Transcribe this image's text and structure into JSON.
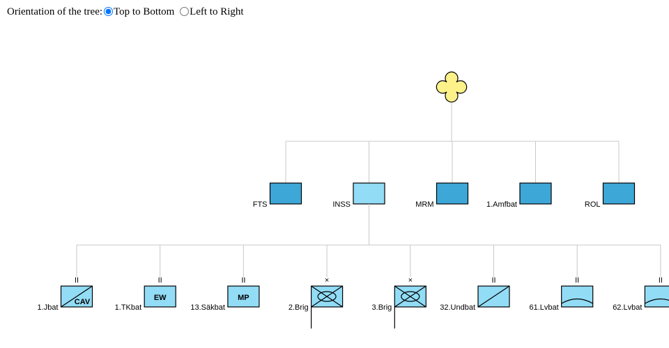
{
  "controls": {
    "label": "Orientation of the tree:",
    "options": [
      "Top to Bottom",
      "Left to Right"
    ]
  },
  "tree": {
    "level1": [
      {
        "label": "FTS",
        "color": "#3da8d8"
      },
      {
        "label": "INSS",
        "color": "#92dcf6"
      },
      {
        "label": "MRM",
        "color": "#3da8d8"
      },
      {
        "label": "1.Amfbat",
        "color": "#3da8d8"
      },
      {
        "label": "ROL",
        "color": "#3da8d8"
      }
    ],
    "level2": [
      {
        "label": "1.Jbat",
        "echelon": "II",
        "kind": "cavalry",
        "text": "CAV"
      },
      {
        "label": "1.TKbat",
        "echelon": "II",
        "kind": "text",
        "text": "EW"
      },
      {
        "label": "13.Säkbat",
        "echelon": "II",
        "kind": "text",
        "text": "MP"
      },
      {
        "label": "2.Brig",
        "echelon": "×",
        "kind": "brigade"
      },
      {
        "label": "3.Brig",
        "echelon": "×",
        "kind": "brigade"
      },
      {
        "label": "32.Undbat",
        "echelon": "II",
        "kind": "diagonal"
      },
      {
        "label": "61.Lvbat",
        "echelon": "II",
        "kind": "airdefense"
      },
      {
        "label": "62.Lvbat",
        "echelon": "II",
        "kind": "airdefense"
      }
    ]
  }
}
